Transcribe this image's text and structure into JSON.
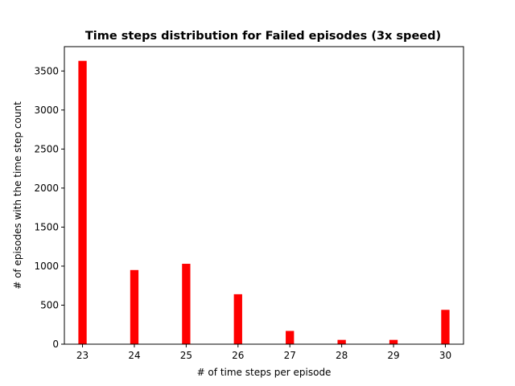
{
  "chart_data": {
    "type": "bar",
    "title": "Time steps distribution for Failed episodes (3x speed)",
    "xlabel": "# of time steps per episode",
    "ylabel": "# of episodes with the time step count",
    "x": [
      23,
      24,
      25,
      26,
      27,
      28,
      29,
      30
    ],
    "values": [
      3630,
      950,
      1030,
      640,
      170,
      55,
      55,
      440
    ],
    "xticks": [
      "23",
      "24",
      "25",
      "26",
      "27",
      "28",
      "29",
      "30"
    ],
    "yticks": [
      "0",
      "500",
      "1000",
      "1500",
      "2000",
      "2500",
      "3000",
      "3500"
    ],
    "ytick_values": [
      0,
      500,
      1000,
      1500,
      2000,
      2500,
      3000,
      3500
    ],
    "xlim": [
      22.65,
      30.35
    ],
    "ylim": [
      0,
      3812
    ],
    "bar_color": "#ff0000",
    "grid": false,
    "legend": "none"
  }
}
